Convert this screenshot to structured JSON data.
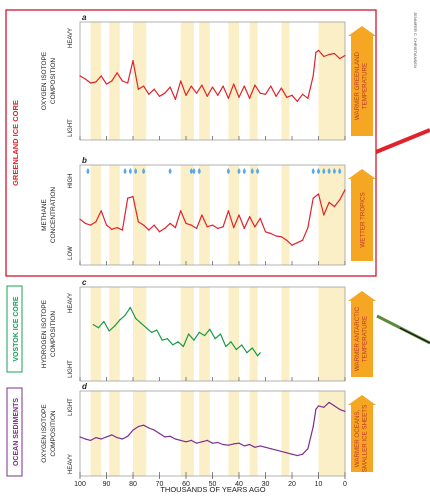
{
  "credit": "JENNIFER C. CHRISTIANSEN",
  "x_axis": {
    "label": "THOUSANDS OF YEARS AGO",
    "ticks": [
      100,
      90,
      80,
      70,
      60,
      50,
      40,
      30,
      20,
      10,
      0
    ],
    "range": [
      100,
      0
    ]
  },
  "groups": [
    {
      "label": "GREENLAND ICE CORE",
      "color": "#e0232b"
    },
    {
      "label": "VOSTOK ICE CORE",
      "color": "#17a356"
    },
    {
      "label": "OCEAN SEDIMENTS",
      "color": "#7d2f8e"
    }
  ],
  "bands": [
    [
      96,
      92
    ],
    [
      89,
      85
    ],
    [
      80,
      75
    ],
    [
      62,
      57
    ],
    [
      55,
      51
    ],
    [
      44,
      40
    ],
    [
      36,
      33
    ],
    [
      24,
      21
    ],
    [
      10,
      0
    ]
  ],
  "colors": {
    "band": "#fbefc7",
    "panel_border": "#a0a0a0",
    "arrow": "#f5a623",
    "frame": "#d0021b",
    "greenland_line": "#e0232b",
    "vostok_line": "#1a9b48",
    "ocean_line": "#7d2f8e"
  },
  "panels": [
    {
      "letter": "a",
      "ylabel_1": "OXYGEN ISOTOPE",
      "ylabel_2": "COMPOSITION",
      "y_high": "HEAVY",
      "y_low": "LIGHT",
      "arrow": "WARMER GREENLAND|TEMPERATURE"
    },
    {
      "letter": "b",
      "ylabel_1": "METHANE",
      "ylabel_2": "CONCENTRATION",
      "y_high": "HIGH",
      "y_low": "LOW",
      "arrow": "WETTER TROPICS"
    },
    {
      "letter": "c",
      "ylabel_1": "HYDROGEN ISOTOPE",
      "ylabel_2": "COMPOSITION",
      "y_high": "HEAVY",
      "y_low": "LIGHT",
      "arrow": "WARMER ANTARCTIC|TEMPERATURE"
    },
    {
      "letter": "d",
      "ylabel_1": "OXYGEN ISOTOPE",
      "ylabel_2": "COMPOSITION",
      "y_high": "LIGHT",
      "y_low": "HEAVY",
      "arrow": "WARMER OCEANS,|SMALLER ICE SHEETS"
    }
  ],
  "chart_data": [
    {
      "type": "line",
      "panel": "a",
      "ylabel": "OXYGEN ISOTOPE COMPOSITION",
      "yrange": [
        "LIGHT",
        "HEAVY"
      ],
      "ylim": [
        0,
        1
      ],
      "xlim": [
        100,
        0
      ],
      "x": [
        100,
        98,
        96,
        94,
        92,
        90,
        88,
        86,
        84,
        82,
        80,
        78,
        76,
        74,
        72,
        70,
        68,
        66,
        64,
        62,
        60,
        58,
        56,
        54,
        52,
        50,
        48,
        46,
        44,
        42,
        40,
        38,
        36,
        34,
        32,
        30,
        28,
        26,
        24,
        22,
        20,
        18,
        16,
        14,
        12,
        11,
        10,
        8,
        6,
        4,
        2,
        0
      ],
      "values": [
        0.55,
        0.52,
        0.48,
        0.49,
        0.55,
        0.47,
        0.5,
        0.58,
        0.5,
        0.48,
        0.7,
        0.42,
        0.45,
        0.37,
        0.42,
        0.35,
        0.38,
        0.44,
        0.32,
        0.5,
        0.36,
        0.45,
        0.38,
        0.46,
        0.35,
        0.44,
        0.36,
        0.45,
        0.33,
        0.47,
        0.34,
        0.45,
        0.33,
        0.46,
        0.38,
        0.37,
        0.45,
        0.35,
        0.43,
        0.34,
        0.36,
        0.3,
        0.37,
        0.33,
        0.55,
        0.78,
        0.8,
        0.74,
        0.76,
        0.77,
        0.72,
        0.75
      ]
    },
    {
      "type": "line",
      "panel": "b",
      "ylabel": "METHANE CONCENTRATION",
      "yrange": [
        "LOW",
        "HIGH"
      ],
      "ylim": [
        0,
        1
      ],
      "xlim": [
        100,
        0
      ],
      "x": [
        100,
        98,
        96,
        94,
        92,
        90,
        88,
        86,
        84,
        82,
        80,
        78,
        76,
        74,
        72,
        70,
        68,
        66,
        64,
        62,
        60,
        58,
        56,
        54,
        52,
        50,
        48,
        46,
        44,
        42,
        40,
        38,
        36,
        34,
        32,
        30,
        28,
        26,
        24,
        22,
        20,
        18,
        16,
        14,
        12,
        10,
        8,
        6,
        4,
        2,
        0
      ],
      "values": [
        0.45,
        0.4,
        0.38,
        0.42,
        0.55,
        0.38,
        0.33,
        0.35,
        0.32,
        0.7,
        0.72,
        0.42,
        0.38,
        0.32,
        0.38,
        0.3,
        0.34,
        0.4,
        0.35,
        0.55,
        0.4,
        0.38,
        0.34,
        0.5,
        0.36,
        0.38,
        0.34,
        0.36,
        0.55,
        0.35,
        0.5,
        0.34,
        0.48,
        0.36,
        0.46,
        0.3,
        0.28,
        0.25,
        0.24,
        0.2,
        0.14,
        0.17,
        0.2,
        0.35,
        0.7,
        0.75,
        0.5,
        0.65,
        0.6,
        0.68,
        0.8
      ]
    },
    {
      "type": "line",
      "panel": "c",
      "ylabel": "HYDROGEN ISOTOPE COMPOSITION",
      "yrange": [
        "LIGHT",
        "HEAVY"
      ],
      "ylim": [
        0,
        1
      ],
      "xlim": [
        100,
        0
      ],
      "x": [
        95,
        93,
        91,
        89,
        87,
        85,
        83,
        81,
        79,
        77,
        75,
        73,
        71,
        69,
        67,
        65,
        63,
        61,
        59,
        57,
        55,
        53,
        51,
        49,
        47,
        45,
        43,
        41,
        39,
        37,
        35,
        33,
        32
      ],
      "values": [
        0.62,
        0.58,
        0.66,
        0.54,
        0.6,
        0.68,
        0.74,
        0.84,
        0.7,
        0.64,
        0.58,
        0.52,
        0.55,
        0.42,
        0.44,
        0.36,
        0.4,
        0.34,
        0.5,
        0.42,
        0.52,
        0.48,
        0.56,
        0.44,
        0.5,
        0.34,
        0.4,
        0.3,
        0.36,
        0.26,
        0.32,
        0.22,
        0.26
      ]
    },
    {
      "type": "line",
      "panel": "d",
      "ylabel": "OXYGEN ISOTOPE COMPOSITION",
      "yrange": [
        "HEAVY",
        "LIGHT"
      ],
      "ylim": [
        0,
        1
      ],
      "xlim": [
        100,
        0
      ],
      "x": [
        100,
        98,
        96,
        94,
        92,
        90,
        88,
        86,
        84,
        82,
        80,
        78,
        76,
        74,
        72,
        70,
        68,
        66,
        64,
        62,
        60,
        58,
        56,
        54,
        52,
        50,
        48,
        46,
        44,
        42,
        40,
        38,
        36,
        34,
        32,
        30,
        28,
        26,
        24,
        22,
        20,
        18,
        16,
        14,
        12,
        11,
        10,
        8,
        6,
        4,
        2,
        0
      ],
      "values": [
        0.45,
        0.42,
        0.4,
        0.44,
        0.42,
        0.45,
        0.48,
        0.44,
        0.42,
        0.46,
        0.55,
        0.6,
        0.62,
        0.58,
        0.55,
        0.5,
        0.45,
        0.46,
        0.42,
        0.4,
        0.38,
        0.4,
        0.36,
        0.38,
        0.4,
        0.36,
        0.37,
        0.34,
        0.33,
        0.35,
        0.36,
        0.32,
        0.34,
        0.3,
        0.32,
        0.3,
        0.28,
        0.26,
        0.24,
        0.22,
        0.2,
        0.18,
        0.2,
        0.28,
        0.6,
        0.85,
        0.9,
        0.88,
        0.95,
        0.9,
        0.85,
        0.82
      ]
    }
  ]
}
